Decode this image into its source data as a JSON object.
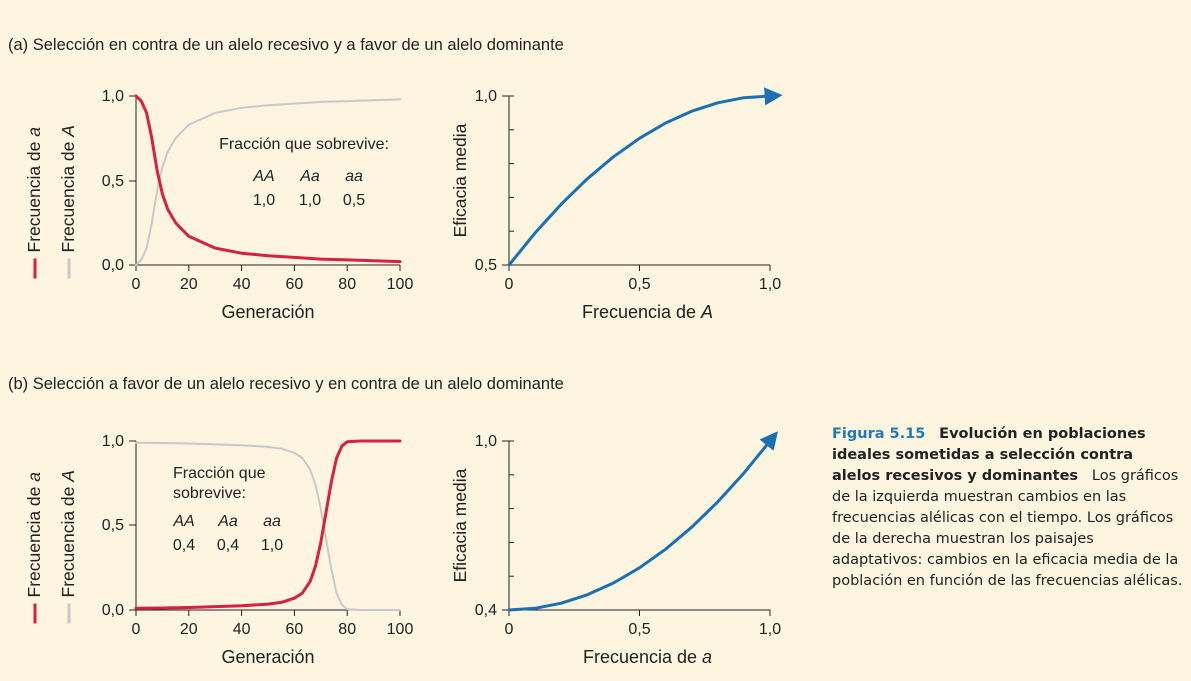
{
  "panels": [
    {
      "heading": "(a) Selección en contra de un alelo recesivo y a favor de un alelo dominante",
      "left": {
        "ylabel_a": "Frecuencia de a",
        "ylabel_A": "Frecuencia de A",
        "xlabel": "Generación",
        "yticks": [
          "1,0",
          "0,5",
          "0,0"
        ],
        "xticks": [
          "0",
          "20",
          "40",
          "60",
          "80",
          "100"
        ],
        "survival_title_1": "Fracción que sobrevive:",
        "survival_title_2": "",
        "genotypes": [
          "AA",
          "Aa",
          "aa"
        ],
        "fitness": [
          "1,0",
          "1,0",
          "0,5"
        ]
      },
      "right": {
        "ylabel": "Eficacia media",
        "xlabel_prefix": "Frecuencia de ",
        "xlabel_var": "A",
        "yticks": [
          "1,0",
          "0,5"
        ],
        "xticks": [
          "0",
          "0,5",
          "1,0"
        ]
      }
    },
    {
      "heading": "(b) Selección a favor de un alelo recesivo y en contra de un alelo dominante",
      "left": {
        "ylabel_a": "Frecuencia de a",
        "ylabel_A": "Frecuencia de A",
        "xlabel": "Generación",
        "yticks": [
          "1,0",
          "0,5",
          "0,0"
        ],
        "xticks": [
          "0",
          "20",
          "40",
          "60",
          "80",
          "100"
        ],
        "survival_title_1": "Fracción que",
        "survival_title_2": "sobrevive:",
        "genotypes": [
          "AA",
          "Aa",
          "aa"
        ],
        "fitness": [
          "0,4",
          "0,4",
          "1,0"
        ]
      },
      "right": {
        "ylabel": "Eficacia media",
        "xlabel_prefix": "Frecuencia de ",
        "xlabel_var": "a",
        "yticks": [
          "1,0",
          "0,4"
        ],
        "xticks": [
          "0",
          "0,5",
          "1,0"
        ]
      }
    }
  ],
  "caption": {
    "label": "Figura 5.15",
    "title": "Evolución en poblaciones ideales sometidas a selección contra alelos recesivos y dominantes",
    "body": "Los gráficos de la izquierda muestran cambios en las frecuencias alélicas con el tiempo. Los gráficos de la derecha muestran los paisajes adaptativos: cambios en la eficacia media de la población en función de las frecuencias alélicas."
  },
  "colors": {
    "allele_a": "#d8203f",
    "allele_A": "#c9c9c9",
    "fitness_curve": "#1a6fb5",
    "background": "#fdf5e0"
  },
  "chart_data": [
    {
      "type": "line",
      "panel": "a-left",
      "xlabel": "Generación",
      "xlim": [
        0,
        100
      ],
      "ylim": [
        0,
        1
      ],
      "series": [
        {
          "name": "Frecuencia de a",
          "x": [
            0,
            2,
            4,
            6,
            8,
            10,
            12,
            15,
            20,
            30,
            40,
            50,
            60,
            70,
            80,
            90,
            100
          ],
          "values": [
            1.0,
            0.97,
            0.9,
            0.75,
            0.56,
            0.42,
            0.33,
            0.25,
            0.17,
            0.1,
            0.07,
            0.055,
            0.045,
            0.035,
            0.03,
            0.025,
            0.02
          ]
        },
        {
          "name": "Frecuencia de A",
          "x": [
            0,
            2,
            4,
            6,
            8,
            10,
            12,
            15,
            20,
            30,
            40,
            50,
            60,
            70,
            80,
            90,
            100
          ],
          "values": [
            0.0,
            0.03,
            0.1,
            0.25,
            0.44,
            0.58,
            0.67,
            0.75,
            0.83,
            0.9,
            0.93,
            0.945,
            0.955,
            0.965,
            0.97,
            0.975,
            0.98
          ]
        }
      ]
    },
    {
      "type": "line",
      "panel": "a-right",
      "xlabel": "Frecuencia de A",
      "ylabel": "Eficacia media",
      "xlim": [
        0,
        1
      ],
      "ylim": [
        0.5,
        1.0
      ],
      "series": [
        {
          "name": "",
          "x": [
            0,
            0.1,
            0.2,
            0.3,
            0.4,
            0.5,
            0.6,
            0.7,
            0.8,
            0.9,
            1.0
          ],
          "values": [
            0.5,
            0.595,
            0.68,
            0.755,
            0.82,
            0.875,
            0.92,
            0.955,
            0.98,
            0.995,
            1.0
          ]
        }
      ]
    },
    {
      "type": "line",
      "panel": "b-left",
      "xlabel": "Generación",
      "xlim": [
        0,
        100
      ],
      "ylim": [
        0,
        1
      ],
      "series": [
        {
          "name": "Frecuencia de a",
          "x": [
            0,
            10,
            20,
            30,
            40,
            50,
            55,
            60,
            63,
            66,
            68,
            70,
            72,
            74,
            76,
            78,
            80,
            85,
            90,
            100
          ],
          "values": [
            0.01,
            0.012,
            0.015,
            0.02,
            0.025,
            0.035,
            0.045,
            0.07,
            0.1,
            0.17,
            0.26,
            0.4,
            0.58,
            0.76,
            0.9,
            0.97,
            0.995,
            1.0,
            1.0,
            1.0
          ]
        },
        {
          "name": "Frecuencia de A",
          "x": [
            0,
            10,
            20,
            30,
            40,
            50,
            55,
            60,
            63,
            66,
            68,
            70,
            72,
            74,
            76,
            78,
            80,
            85,
            90,
            100
          ],
          "values": [
            0.99,
            0.988,
            0.985,
            0.98,
            0.975,
            0.965,
            0.955,
            0.93,
            0.9,
            0.83,
            0.74,
            0.6,
            0.42,
            0.24,
            0.1,
            0.03,
            0.005,
            0.0,
            0.0,
            0.0
          ]
        }
      ]
    },
    {
      "type": "line",
      "panel": "b-right",
      "xlabel": "Frecuencia de a",
      "ylabel": "Eficacia media",
      "xlim": [
        0,
        1
      ],
      "ylim": [
        0.4,
        1.0
      ],
      "series": [
        {
          "name": "",
          "x": [
            0,
            0.1,
            0.2,
            0.3,
            0.4,
            0.5,
            0.6,
            0.7,
            0.8,
            0.9,
            1.0
          ],
          "values": [
            0.4,
            0.406,
            0.424,
            0.454,
            0.496,
            0.55,
            0.616,
            0.694,
            0.784,
            0.886,
            1.0
          ]
        }
      ]
    }
  ]
}
